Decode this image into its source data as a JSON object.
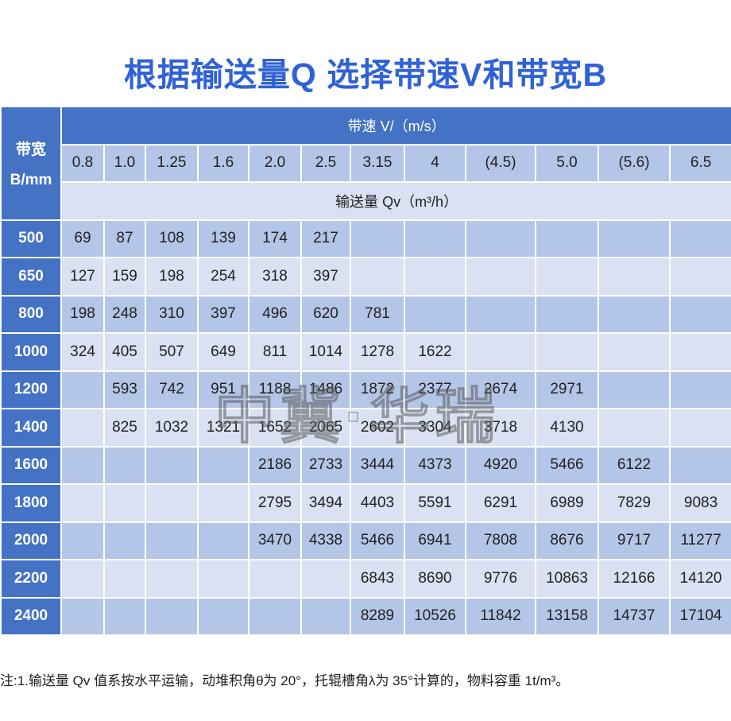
{
  "title": "根据输送量Q 选择带速V和带宽B",
  "table": {
    "corner_line1": "带宽",
    "corner_line2": "B/mm",
    "speed_header": "带速 V/（m/s）",
    "speeds": [
      "0.8",
      "1.0",
      "1.25",
      "1.6",
      "2.0",
      "2.5",
      "3.15",
      "4",
      "(4.5)",
      "5.0",
      "(5.6)",
      "6.5"
    ],
    "flow_header": "输送量 Qv（m³/h）",
    "rows": [
      {
        "width": "500",
        "values": [
          "69",
          "87",
          "108",
          "139",
          "174",
          "217",
          "",
          "",
          "",
          "",
          "",
          ""
        ]
      },
      {
        "width": "650",
        "values": [
          "127",
          "159",
          "198",
          "254",
          "318",
          "397",
          "",
          "",
          "",
          "",
          "",
          ""
        ]
      },
      {
        "width": "800",
        "values": [
          "198",
          "248",
          "310",
          "397",
          "496",
          "620",
          "781",
          "",
          "",
          "",
          "",
          ""
        ]
      },
      {
        "width": "1000",
        "values": [
          "324",
          "405",
          "507",
          "649",
          "811",
          "1014",
          "1278",
          "1622",
          "",
          "",
          "",
          ""
        ]
      },
      {
        "width": "1200",
        "values": [
          "",
          "593",
          "742",
          "951",
          "1188",
          "1486",
          "1872",
          "2377",
          "2674",
          "2971",
          "",
          ""
        ]
      },
      {
        "width": "1400",
        "values": [
          "",
          "825",
          "1032",
          "1321",
          "1652",
          "2065",
          "2602",
          "3304",
          "3718",
          "4130",
          "",
          ""
        ]
      },
      {
        "width": "1600",
        "values": [
          "",
          "",
          "",
          "",
          "2186",
          "2733",
          "3444",
          "4373",
          "4920",
          "5466",
          "6122",
          ""
        ]
      },
      {
        "width": "1800",
        "values": [
          "",
          "",
          "",
          "",
          "2795",
          "3494",
          "4403",
          "5591",
          "6291",
          "6989",
          "7829",
          "9083"
        ]
      },
      {
        "width": "2000",
        "values": [
          "",
          "",
          "",
          "",
          "3470",
          "4338",
          "5466",
          "6941",
          "7808",
          "8676",
          "9717",
          "11277"
        ]
      },
      {
        "width": "2200",
        "values": [
          "",
          "",
          "",
          "",
          "",
          "",
          "6843",
          "8690",
          "9776",
          "10863",
          "12166",
          "14120"
        ]
      },
      {
        "width": "2400",
        "values": [
          "",
          "",
          "",
          "",
          "",
          "",
          "8289",
          "10526",
          "11842",
          "13158",
          "14737",
          "17104"
        ]
      }
    ]
  },
  "note": "注:1.输送量 Qv 值系按水平运输，动堆积角θ为 20°，托辊槽角λ为 35°计算的，物料容重 1t/m³。",
  "watermark": "中冀·华瑞",
  "colors": {
    "title": "#2f62d6",
    "header": "#4472c4",
    "dark_row": "#b4c6e7",
    "light_row": "#d9e1f2"
  }
}
